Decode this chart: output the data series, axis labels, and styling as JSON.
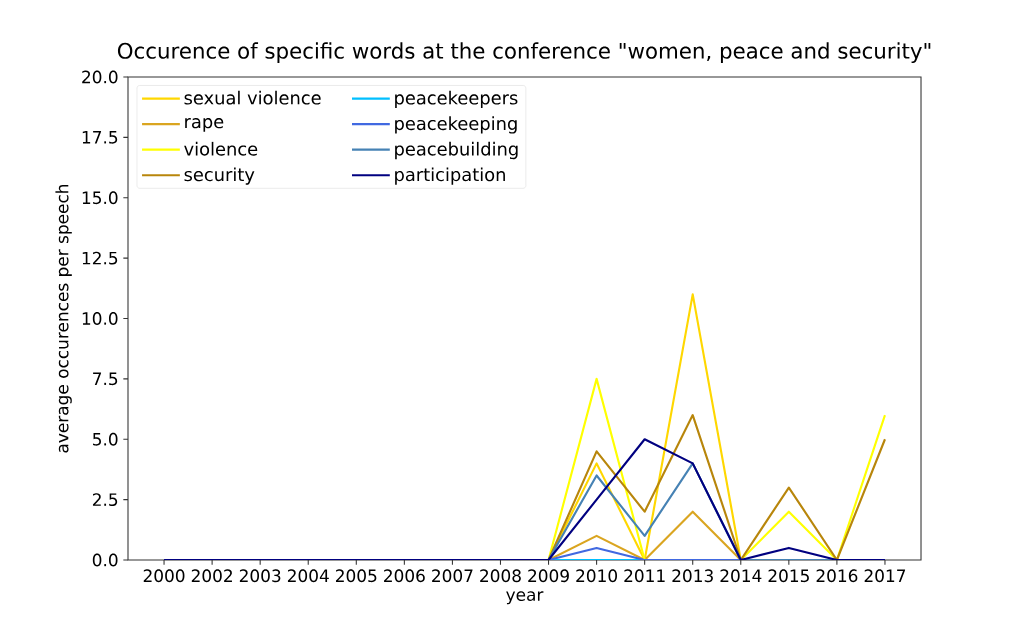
{
  "chart_data": {
    "type": "line",
    "title": "Occurence of specific words at the conference \"women, peace and security\"",
    "xlabel": "year",
    "ylabel": "average occurences per speech",
    "categories": [
      "2000",
      "2002",
      "2003",
      "2004",
      "2005",
      "2006",
      "2007",
      "2008",
      "2009",
      "2010",
      "2011",
      "2013",
      "2014",
      "2015",
      "2016",
      "2017"
    ],
    "ylim": [
      0,
      20
    ],
    "yticks": [
      {
        "value": 0,
        "label": "0.0"
      },
      2.5,
      {
        "value": 5,
        "label": "5.0"
      },
      7.5,
      {
        "value": 10,
        "label": "10.0"
      },
      12.5,
      {
        "value": 15,
        "label": "15.0"
      },
      17.5,
      {
        "value": 20,
        "label": "20.0"
      }
    ],
    "legend": "top left",
    "series": [
      {
        "name": "sexual violence",
        "color": "#ffd700",
        "values": [
          null,
          null,
          null,
          null,
          null,
          null,
          null,
          null,
          0,
          4,
          0,
          11,
          0,
          null,
          null,
          null
        ]
      },
      {
        "name": "rape",
        "color": "#daa520",
        "values": [
          null,
          null,
          null,
          null,
          null,
          null,
          null,
          null,
          0,
          1,
          0,
          2,
          0,
          null,
          null,
          null
        ]
      },
      {
        "name": "violence",
        "color": "#ffff00",
        "values": [
          null,
          null,
          null,
          null,
          null,
          null,
          null,
          null,
          0,
          7.5,
          0,
          null,
          0,
          2,
          0,
          6
        ]
      },
      {
        "name": "security",
        "color": "#b8860b",
        "values": [
          null,
          null,
          null,
          null,
          null,
          null,
          null,
          null,
          0,
          4.5,
          2,
          6,
          0,
          3,
          0,
          5
        ]
      },
      {
        "name": "peacekeepers",
        "color": "#00bfff",
        "values": [
          null,
          null,
          null,
          null,
          null,
          null,
          null,
          null,
          0,
          0,
          0,
          null,
          null,
          null,
          null,
          null
        ]
      },
      {
        "name": "peacekeeping",
        "color": "#4169e1",
        "values": [
          null,
          null,
          null,
          null,
          null,
          null,
          null,
          null,
          0,
          0.5,
          0,
          0,
          0,
          null,
          null,
          null
        ]
      },
      {
        "name": "peacebuilding",
        "color": "#4682b4",
        "values": [
          null,
          null,
          null,
          null,
          null,
          null,
          null,
          null,
          0,
          3.5,
          1,
          4,
          0,
          0,
          0,
          null
        ]
      },
      {
        "name": "participation",
        "color": "#000080",
        "values": [
          0,
          0,
          0,
          0,
          0,
          0,
          0,
          0,
          0,
          2.5,
          5,
          4,
          0,
          0.5,
          0,
          0
        ]
      }
    ]
  }
}
